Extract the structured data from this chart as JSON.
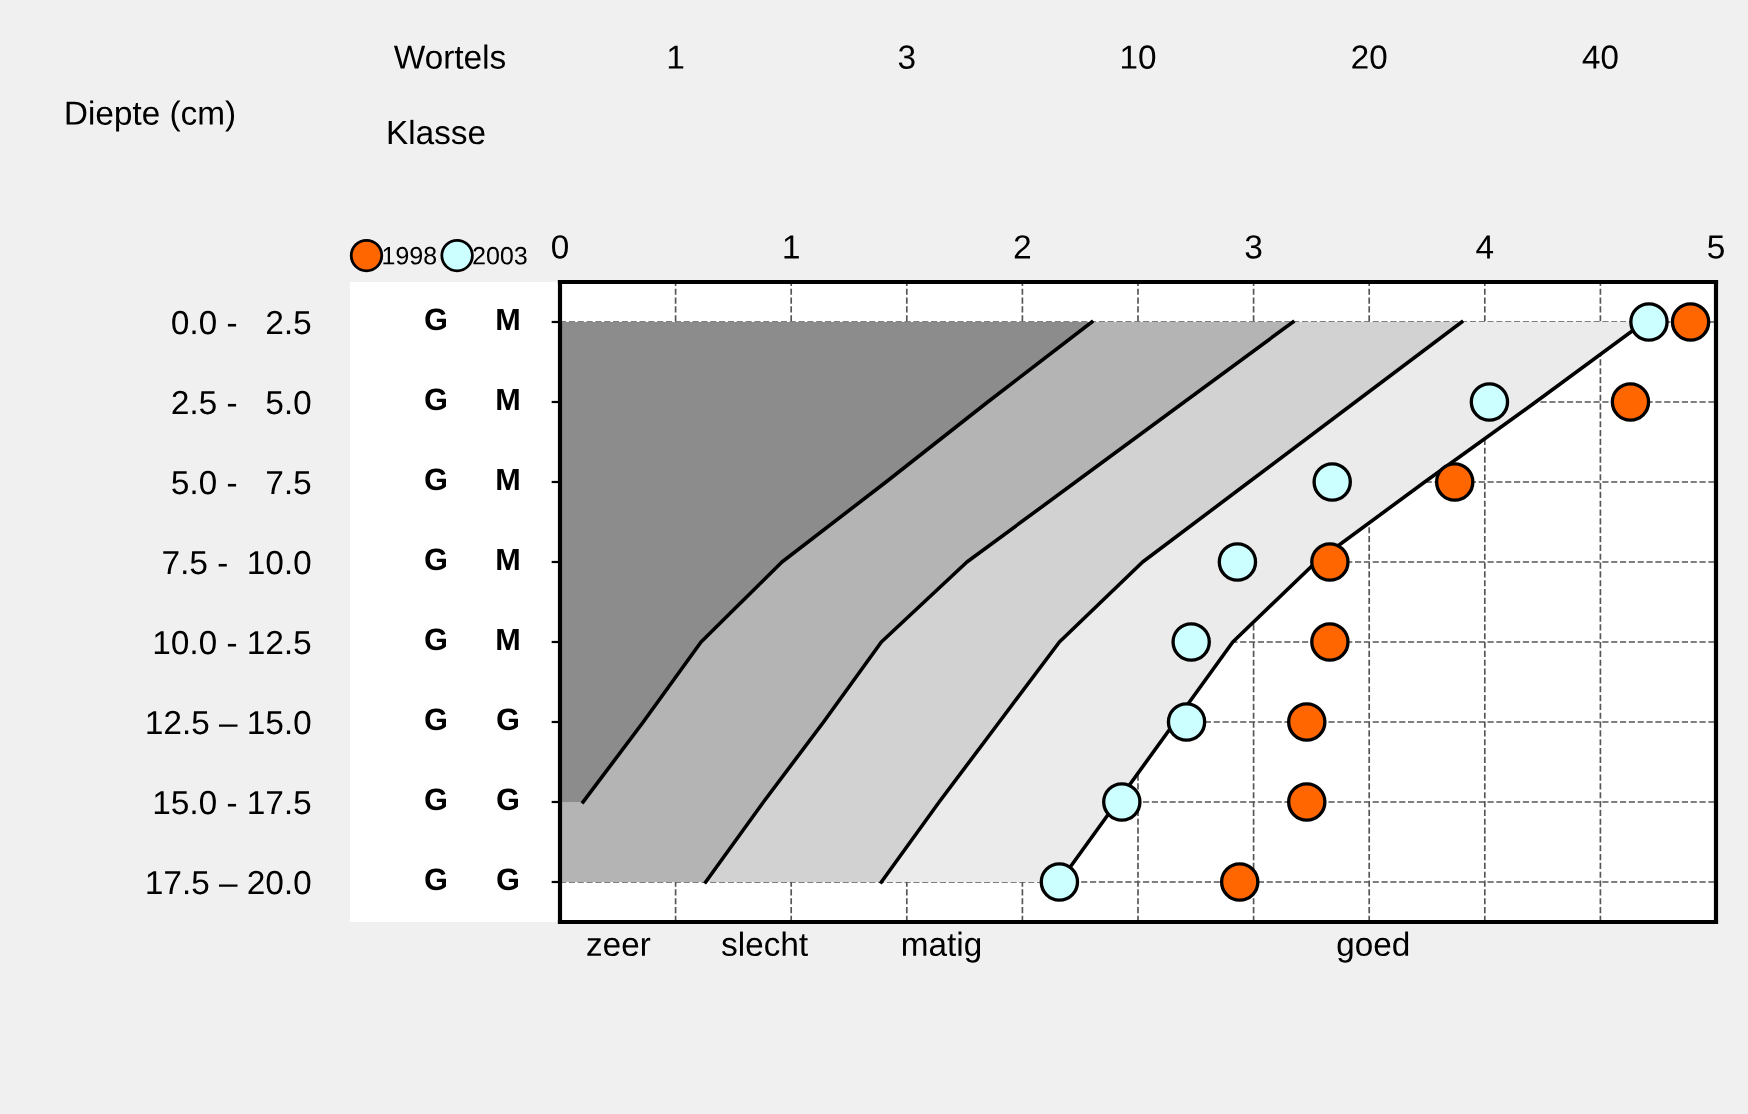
{
  "chart_data": {
    "type": "scatter",
    "orientation": "horizontal",
    "ylabel": "Diepte (cm)",
    "xlabel": "Klasse",
    "x2label": "Wortels",
    "categories": [
      "0.0 -   2.5",
      "2.5 -   5.0",
      "5.0 -   7.5",
      "7.5 -  10.0",
      "10.0 - 12.5",
      "12.5 – 15.0",
      "15.0 - 17.5",
      "17.5 – 20.0"
    ],
    "xlim": [
      0,
      5
    ],
    "xticks": [
      0,
      {
        "value": 0.5,
        "label": null
      },
      1,
      {
        "value": 1.5,
        "label": null
      },
      2,
      {
        "value": 2.5,
        "label": null
      },
      3,
      {
        "value": 3.5,
        "label": null
      },
      4,
      {
        "value": 4.5,
        "label": null
      },
      5
    ],
    "grid": true,
    "legend": "top left",
    "marker": "circle",
    "annotations": [
      "1",
      "3",
      "10",
      "20",
      "40",
      "zeer",
      "slecht",
      "matig",
      "goed"
    ],
    "series": [
      {
        "type": "area",
        "color": "#8c8c8c",
        "marker": "none",
        "values": [
          2.3,
          1.85,
          1.41,
          0.96,
          0.61,
          0.36,
          0.1,
          null
        ]
      },
      {
        "type": "area",
        "color": "#b4b4b4",
        "marker": "none",
        "values": [
          3.17,
          2.7,
          2.23,
          1.76,
          1.39,
          1.14,
          0.88,
          0.63
        ]
      },
      {
        "type": "area",
        "color": "#d2d2d2",
        "marker": "none",
        "values": [
          3.9,
          3.44,
          2.98,
          2.52,
          2.16,
          1.9,
          1.64,
          1.39
        ]
      },
      {
        "type": "area",
        "color": "#ebebeb",
        "marker": "none",
        "values": [
          4.69,
          4.22,
          3.74,
          3.27,
          2.91,
          2.66,
          2.41,
          2.16
        ]
      },
      {
        "name": "1998",
        "color": "#ff6600",
        "values": [
          4.89,
          4.63,
          3.87,
          3.33,
          3.33,
          3.23,
          3.23,
          2.94
        ],
        "value_labels": [
          "G",
          "G",
          "G",
          "G",
          "G",
          "G",
          "G",
          "G"
        ]
      },
      {
        "name": "2003",
        "color": "#ccffff",
        "values": [
          4.71,
          4.02,
          3.34,
          2.93,
          2.73,
          2.71,
          2.43,
          2.16
        ],
        "value_labels": [
          "M",
          "M",
          "M",
          "M",
          "M",
          "G",
          "G",
          "G"
        ]
      }
    ]
  }
}
